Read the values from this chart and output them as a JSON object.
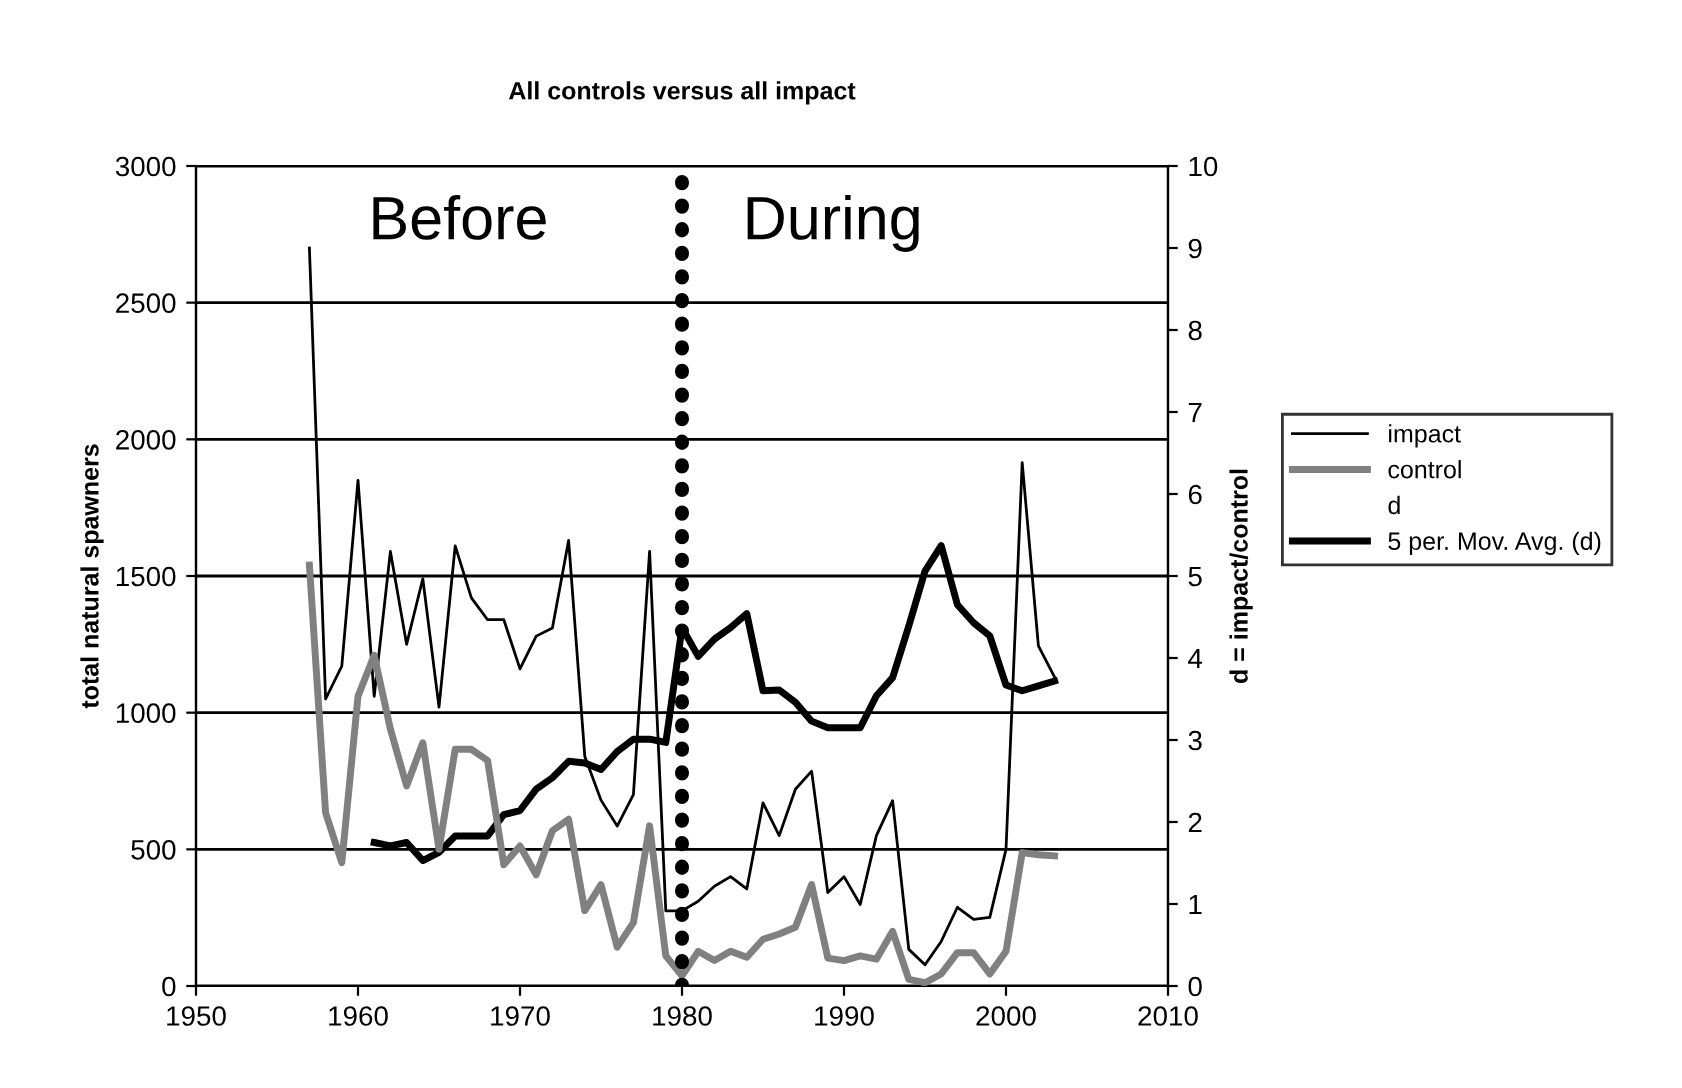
{
  "chart_data": {
    "type": "line",
    "title": "All controls versus all impact",
    "ylabel": "total natural spawners",
    "y2label": "d = impact/control",
    "x": [
      1957,
      1958,
      1959,
      1960,
      1961,
      1962,
      1963,
      1964,
      1965,
      1966,
      1967,
      1968,
      1969,
      1970,
      1971,
      1972,
      1973,
      1974,
      1975,
      1976,
      1977,
      1978,
      1979,
      1980,
      1981,
      1982,
      1983,
      1984,
      1985,
      1986,
      1987,
      1988,
      1989,
      1990,
      1991,
      1992,
      1993,
      1994,
      1995,
      1996,
      1997,
      1998,
      1999,
      2000,
      2001,
      2002,
      2003
    ],
    "series": [
      {
        "name": "impact",
        "color": "#000000",
        "values": [
          2700,
          1050,
          1170,
          1850,
          1060,
          1590,
          1250,
          1490,
          1020,
          1610,
          1420,
          1340,
          1340,
          1160,
          1280,
          1310,
          1630,
          840,
          680,
          585,
          700,
          1590,
          275,
          275,
          310,
          365,
          400,
          355,
          670,
          550,
          720,
          786,
          342,
          400,
          298,
          550,
          678,
          134,
          78,
          163,
          288,
          244,
          251,
          500,
          1915,
          1244,
          1130
        ]
      },
      {
        "name": "control",
        "color": "#808080",
        "values": [
          1540,
          634,
          451,
          1060,
          1210,
          940,
          732,
          890,
          500,
          866,
          866,
          825,
          444,
          512,
          407,
          568,
          610,
          276,
          371,
          142,
          232,
          586,
          110,
          37,
          127,
          93,
          127,
          105,
          171,
          190,
          215,
          371,
          102,
          93,
          110,
          98,
          200,
          24,
          12,
          44,
          122,
          122,
          44,
          127,
          488,
          480,
          476
        ]
      },
      {
        "name": "d",
        "axis": "y2",
        "values": [
          null,
          null,
          null,
          null,
          null,
          null,
          null,
          null,
          null,
          null,
          null,
          null,
          null,
          null,
          null,
          null,
          null,
          null,
          null,
          null,
          null,
          null,
          null,
          null,
          null,
          null,
          null,
          null,
          null,
          null,
          null,
          null,
          null,
          null,
          null,
          null,
          null,
          null,
          null,
          null,
          null,
          null,
          null,
          null,
          null,
          null,
          null
        ]
      },
      {
        "name": "5 per. Mov. Avg. (d)",
        "color": "#000000",
        "axis": "y2",
        "values": [
          null,
          null,
          null,
          null,
          1.75,
          1.71,
          1.75,
          1.53,
          1.63,
          1.83,
          1.83,
          1.83,
          2.09,
          2.14,
          2.4,
          2.54,
          2.74,
          2.72,
          2.64,
          2.86,
          3.01,
          3.01,
          2.97,
          4.37,
          4.02,
          4.23,
          4.37,
          4.54,
          3.6,
          3.61,
          3.46,
          3.23,
          3.15,
          3.15,
          3.15,
          3.54,
          3.76,
          4.39,
          5.06,
          5.37,
          4.65,
          4.43,
          4.27,
          3.67,
          3.6,
          3.66,
          3.72
        ]
      }
    ],
    "xlim": [
      1950,
      2010
    ],
    "xticks": [
      1950,
      1960,
      1970,
      1980,
      1990,
      2000,
      2010
    ],
    "ylim": [
      0,
      3000
    ],
    "yticks": [
      0,
      500,
      1000,
      1500,
      2000,
      2500,
      3000
    ],
    "y2lim": [
      0,
      10
    ],
    "y2ticks": [
      0,
      1,
      2,
      3,
      4,
      5,
      6,
      7,
      8,
      9,
      10
    ],
    "ref_lines": [
      {
        "axis": "x",
        "value": 1980,
        "color": "#000000",
        "line_style": "dotted"
      }
    ],
    "annotations": [
      "Before",
      "During"
    ],
    "grid": "y",
    "legend": "right",
    "marker": "none",
    "line_style": "solid"
  }
}
